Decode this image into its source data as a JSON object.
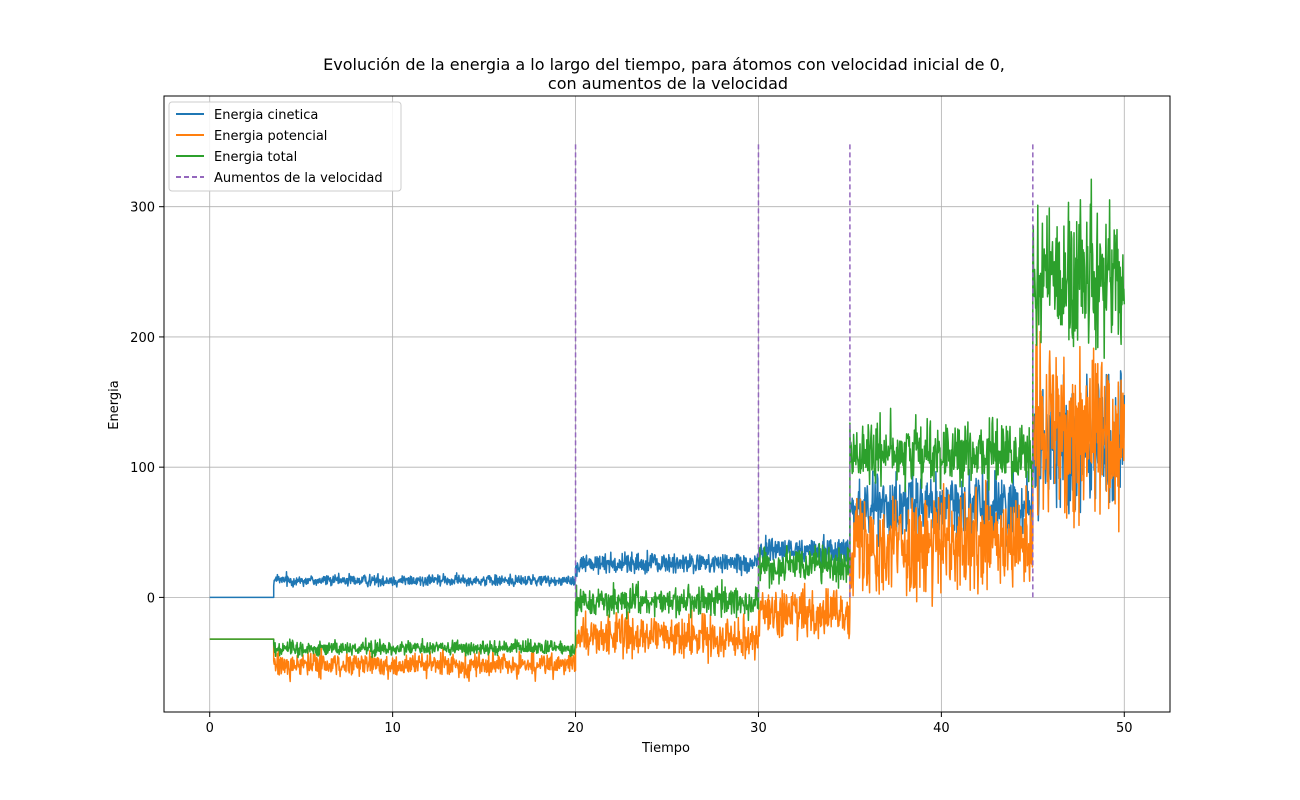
{
  "chart_data": {
    "type": "line",
    "title": "Evolución de la energia a lo largo del tiempo, para átomos con velocidad inicial de 0,",
    "title_line2": "con aumentos de la velocidad",
    "xlabel": "Tiempo",
    "ylabel": "Energia",
    "xlim": [
      -2.5,
      52.5
    ],
    "ylim": [
      -88,
      385
    ],
    "xticks": [
      0,
      10,
      20,
      30,
      40,
      50
    ],
    "xtick_labels": [
      "0",
      "10",
      "20",
      "30",
      "40",
      "50"
    ],
    "yticks": [
      0,
      100,
      200,
      300
    ],
    "ytick_labels": [
      "0",
      "100",
      "200",
      "300"
    ],
    "grid": true,
    "legend_position": "upper-left",
    "legend": [
      {
        "label": "Energia cinetica",
        "color": "#1f77b4",
        "style": "solid"
      },
      {
        "label": "Energia potencial",
        "color": "#ff7f0e",
        "style": "solid"
      },
      {
        "label": "Energia total",
        "color": "#2ca02c",
        "style": "solid"
      },
      {
        "label": "Aumentos de la velocidad",
        "color": "#9467bd",
        "style": "dashed"
      }
    ],
    "series": [
      {
        "name": "Energia cinetica",
        "color": "#1f77b4",
        "segments": [
          {
            "x": [
              0,
              3.5
            ],
            "mean": 0,
            "amp": 0
          },
          {
            "x": [
              3.5,
              20
            ],
            "mean": 13,
            "amp": 4
          },
          {
            "x": [
              20,
              30
            ],
            "mean": 26,
            "amp": 7
          },
          {
            "x": [
              30,
              35
            ],
            "mean": 36,
            "amp": 9
          },
          {
            "x": [
              35,
              45
            ],
            "mean": 70,
            "amp": 22
          },
          {
            "x": [
              45,
              50
            ],
            "mean": 115,
            "amp": 45
          }
        ]
      },
      {
        "name": "Energia potencial",
        "color": "#ff7f0e",
        "segments": [
          {
            "x": [
              0,
              3.5
            ],
            "mean": -32,
            "amp": 0
          },
          {
            "x": [
              3.5,
              20
            ],
            "mean": -52,
            "amp": 8
          },
          {
            "x": [
              20,
              30
            ],
            "mean": -30,
            "amp": 14
          },
          {
            "x": [
              30,
              35
            ],
            "mean": -12,
            "amp": 16
          },
          {
            "x": [
              35,
              45
            ],
            "mean": 40,
            "amp": 35
          },
          {
            "x": [
              45,
              50
            ],
            "mean": 130,
            "amp": 60
          }
        ]
      },
      {
        "name": "Energia total",
        "color": "#2ca02c",
        "segments": [
          {
            "x": [
              0,
              3.5
            ],
            "mean": -32,
            "amp": 0
          },
          {
            "x": [
              3.5,
              20
            ],
            "mean": -39,
            "amp": 5
          },
          {
            "x": [
              20,
              30
            ],
            "mean": -3,
            "amp": 10
          },
          {
            "x": [
              30,
              35
            ],
            "mean": 24,
            "amp": 12
          },
          {
            "x": [
              35,
              45
            ],
            "mean": 110,
            "amp": 22
          },
          {
            "x": [
              45,
              50
            ],
            "mean": 245,
            "amp": 48
          }
        ]
      }
    ],
    "vlines": {
      "name": "Aumentos de la velocidad",
      "color": "#9467bd",
      "x": [
        20,
        30,
        35,
        45
      ],
      "ymin": 0,
      "ymax": 350
    }
  }
}
